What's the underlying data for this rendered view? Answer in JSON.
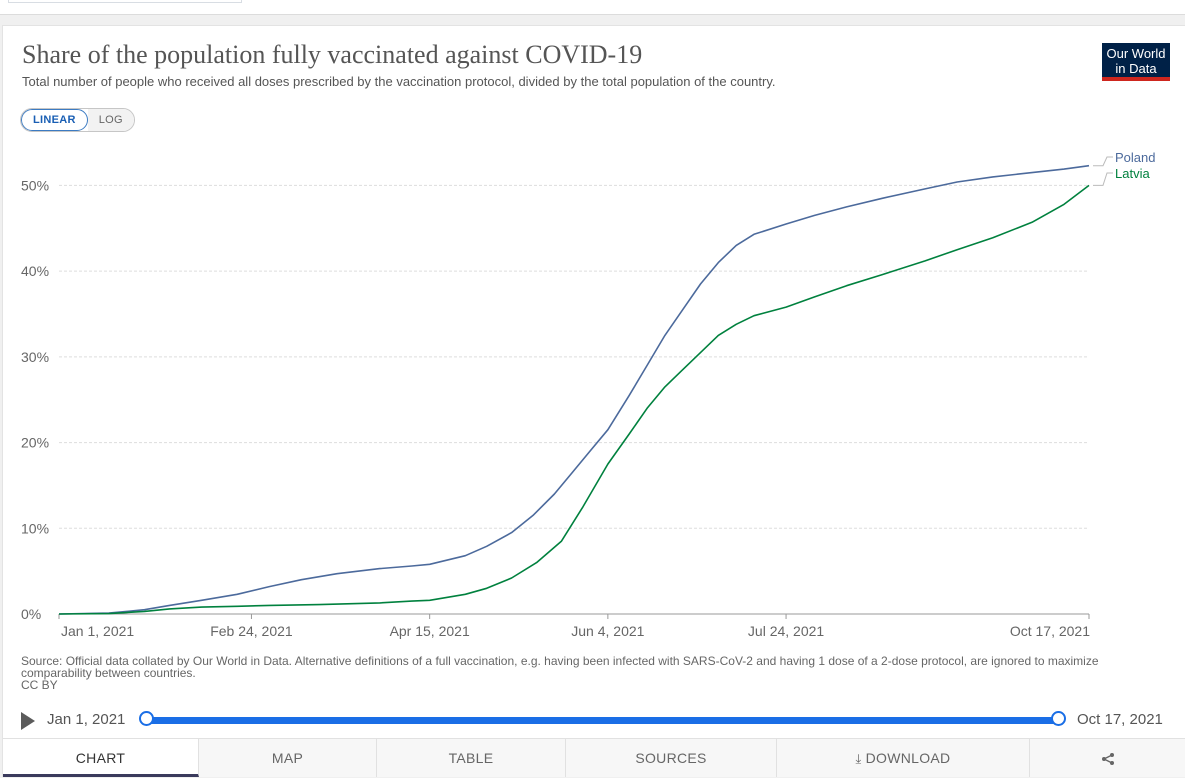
{
  "header": {
    "title": "Share of the population fully vaccinated against COVID-19",
    "subtitle": "Total number of people who received all doses prescribed by the vaccination protocol, divided by the total population of the country.",
    "logo_line1": "Our World",
    "logo_line2": "in Data"
  },
  "scale_toggle": {
    "linear": "LINEAR",
    "log": "LOG",
    "selected": "LINEAR"
  },
  "chart_data": {
    "type": "line",
    "title": "Share of the population fully vaccinated against COVID-19",
    "xlabel": "",
    "ylabel": "",
    "ylim": [
      0,
      52.5
    ],
    "yticks": [
      0,
      10,
      20,
      30,
      40,
      50
    ],
    "ytick_labels": [
      "0%",
      "10%",
      "20%",
      "30%",
      "40%",
      "50%"
    ],
    "xticks": [
      "2021-01-01",
      "2021-02-24",
      "2021-04-15",
      "2021-06-04",
      "2021-07-24",
      "2021-10-17"
    ],
    "xtick_labels": [
      "Jan 1, 2021",
      "Feb 24, 2021",
      "Apr 15, 2021",
      "Jun 4, 2021",
      "Jul 24, 2021",
      "Oct 17, 2021"
    ],
    "xlim": [
      "2021-01-01",
      "2021-10-17"
    ],
    "grid": "horizontal dashed",
    "legend": "right, end of lines",
    "colors": {
      "Poland": "#4c6a9c",
      "Latvia": "#00813e"
    },
    "series": [
      {
        "name": "Poland",
        "x": [
          "2021-01-01",
          "2021-01-15",
          "2021-01-25",
          "2021-02-01",
          "2021-02-10",
          "2021-02-20",
          "2021-03-01",
          "2021-03-10",
          "2021-03-20",
          "2021-04-01",
          "2021-04-10",
          "2021-04-15",
          "2021-04-25",
          "2021-05-01",
          "2021-05-08",
          "2021-05-14",
          "2021-05-20",
          "2021-05-25",
          "2021-05-30",
          "2021-06-04",
          "2021-06-10",
          "2021-06-15",
          "2021-06-20",
          "2021-06-25",
          "2021-06-30",
          "2021-07-05",
          "2021-07-10",
          "2021-07-15",
          "2021-07-24",
          "2021-08-01",
          "2021-08-10",
          "2021-08-20",
          "2021-09-01",
          "2021-09-10",
          "2021-09-20",
          "2021-10-01",
          "2021-10-10",
          "2021-10-17"
        ],
        "values": [
          0,
          0.1,
          0.5,
          1.0,
          1.6,
          2.3,
          3.2,
          4.0,
          4.7,
          5.3,
          5.6,
          5.8,
          6.8,
          7.9,
          9.5,
          11.5,
          14.0,
          16.5,
          19.0,
          21.5,
          25.5,
          29.0,
          32.5,
          35.5,
          38.5,
          41.0,
          43.0,
          44.3,
          45.5,
          46.5,
          47.5,
          48.5,
          49.6,
          50.4,
          51.0,
          51.5,
          51.9,
          52.3
        ]
      },
      {
        "name": "Latvia",
        "x": [
          "2021-01-01",
          "2021-01-15",
          "2021-01-25",
          "2021-02-01",
          "2021-02-10",
          "2021-02-20",
          "2021-03-01",
          "2021-03-15",
          "2021-04-01",
          "2021-04-10",
          "2021-04-15",
          "2021-04-25",
          "2021-05-01",
          "2021-05-08",
          "2021-05-15",
          "2021-05-22",
          "2021-05-28",
          "2021-06-04",
          "2021-06-10",
          "2021-06-15",
          "2021-06-20",
          "2021-06-25",
          "2021-06-30",
          "2021-07-05",
          "2021-07-10",
          "2021-07-15",
          "2021-07-24",
          "2021-08-01",
          "2021-08-10",
          "2021-08-20",
          "2021-09-01",
          "2021-09-10",
          "2021-09-20",
          "2021-10-01",
          "2021-10-10",
          "2021-10-17"
        ],
        "values": [
          0,
          0.05,
          0.3,
          0.6,
          0.8,
          0.9,
          1.0,
          1.1,
          1.3,
          1.5,
          1.6,
          2.3,
          3.0,
          4.2,
          6.0,
          8.5,
          12.5,
          17.5,
          21.0,
          24.0,
          26.5,
          28.5,
          30.5,
          32.5,
          33.8,
          34.8,
          35.8,
          37.0,
          38.3,
          39.6,
          41.2,
          42.5,
          43.9,
          45.7,
          47.8,
          50.0
        ]
      }
    ]
  },
  "source": "Source: Official data collated by Our World in Data. Alternative definitions of a full vaccination, e.g. having been infected with SARS-CoV-2 and having 1 dose of a 2-dose protocol, are ignored to maximize comparability between countries.",
  "license": "CC BY",
  "timeline": {
    "start": "Jan 1, 2021",
    "end": "Oct 17, 2021"
  },
  "tabs": [
    "CHART",
    "MAP",
    "TABLE",
    "SOURCES",
    "DOWNLOAD"
  ],
  "icons": {
    "play": "play-icon",
    "download": "download-icon",
    "share": "share-icon"
  }
}
